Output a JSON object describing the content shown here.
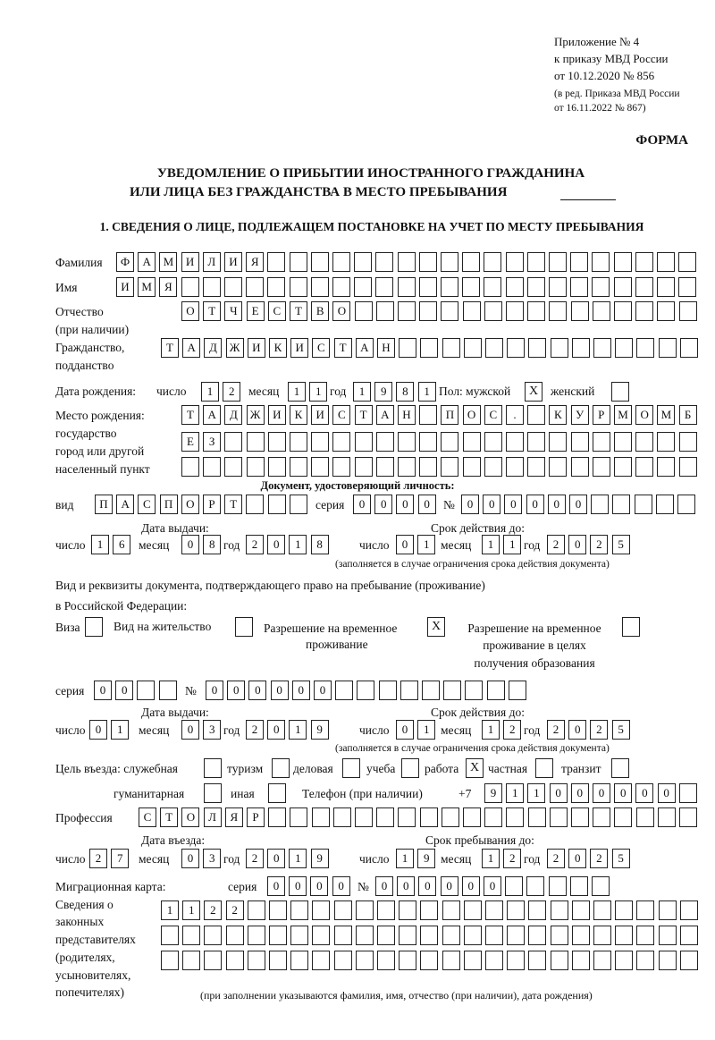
{
  "header": {
    "appendix": "Приложение № 4",
    "order": "к приказу МВД России",
    "order_date": "от 10.12.2020 № 856",
    "revision1": "(в ред. Приказа МВД России",
    "revision2": "от 16.11.2022 № 867)",
    "form": "ФОРМА",
    "title1": "УВЕДОМЛЕНИЕ О ПРИБЫТИИ ИНОСТРАННОГО ГРАЖДАНИНА",
    "title2": "ИЛИ ЛИЦА БЕЗ ГРАЖДАНСТВА В МЕСТО ПРЕБЫВАНИЯ",
    "section1": "1. СВЕДЕНИЯ О ЛИЦЕ, ПОДЛЕЖАЩЕМ ПОСТАНОВКЕ НА УЧЕТ ПО МЕСТУ ПРЕБЫВАНИЯ"
  },
  "labels": {
    "surname": "Фамилия",
    "name": "Имя",
    "patronymic1": "Отчество",
    "patronymic2": "(при наличии)",
    "citizenship1": "Гражданство,",
    "citizenship2": "подданство",
    "birth_date": "Дата рождения:",
    "day": "число",
    "month": "месяц",
    "year": "год",
    "sex": "Пол: мужской",
    "female": "женский",
    "birthplace1": "Место рождения:",
    "birthplace2": "государство",
    "birthplace3": "город или другой",
    "birthplace4": "населенный пункт",
    "id_doc": "Документ, удостоверяющий личность:",
    "kind": "вид",
    "series": "серия",
    "number": "№",
    "issue_date": "Дата выдачи:",
    "valid_until": "Срок действия до:",
    "validity_note": "(заполняется в случае ограничения срока действия документа)",
    "right_doc1": "Вид и реквизиты документа, подтверждающего право на пребывание (проживание)",
    "right_doc2": "в Российской Федерации:",
    "visa": "Виза",
    "residence": "Вид на жительство",
    "temp_permit1": "Разрешение на временное",
    "temp_permit2": "проживание",
    "edu_permit1": "Разрешение на временное",
    "edu_permit2": "проживание в целях",
    "edu_permit3": "получения образования",
    "purpose": "Цель въезда: служебная",
    "tourism": "туризм",
    "business": "деловая",
    "study": "учеба",
    "work": "работа",
    "private": "частная",
    "transit": "транзит",
    "humanitarian": "гуманитарная",
    "other": "иная",
    "phone": "Телефон (при наличии)",
    "phone_prefix": "+7",
    "profession": "Профессия",
    "entry_date": "Дата въезда:",
    "stay_until": "Срок пребывания до:",
    "migration_card": "Миграционная карта:",
    "reps1": "Сведения о",
    "reps2": "законных",
    "reps3": "представителях",
    "reps4": "(родителях,",
    "reps5": "усыновителях,",
    "reps6": "попечителях)",
    "reps_note": "(при заполнении указываются фамилия, имя, отчество (при наличии), дата рождения)"
  },
  "person": {
    "surname": "ФАМИЛИЯ",
    "name": "ИМЯ",
    "patronymic": "ОТЧЕСТВО",
    "citizenship": "ТАДЖИКИСТАН",
    "birth_day": "12",
    "birth_month": "11",
    "birth_year": "1981",
    "male": "X",
    "female": "",
    "birthplace_row1": "ТАДЖИКИСТАН ПОС. КУРМОМБ",
    "birthplace_row2": "ЕЗ",
    "birthplace_row3": ""
  },
  "id_document": {
    "kind": "ПАСПОРТ",
    "series": "0000",
    "number": "000000",
    "issue_day": "16",
    "issue_month": "08",
    "issue_year": "2018",
    "valid_day": "01",
    "valid_month": "11",
    "valid_year": "2025"
  },
  "right_document": {
    "visa": "",
    "residence": "",
    "temp_permit": "X",
    "edu_permit": "",
    "series": "00",
    "number": "000000",
    "issue_day": "01",
    "issue_month": "03",
    "issue_year": "2019",
    "valid_day": "01",
    "valid_month": "12",
    "valid_year": "2025"
  },
  "purpose": {
    "official": "",
    "tourism": "",
    "business": "",
    "study": "",
    "work": "X",
    "private": "",
    "transit": "",
    "humanitarian": "",
    "other": ""
  },
  "phone": "911000000",
  "profession": "СТОЛЯР",
  "entry": {
    "entry_day": "27",
    "entry_month": "03",
    "entry_year": "2019",
    "stay_day": "19",
    "stay_month": "12",
    "stay_year": "2025"
  },
  "migration_card": {
    "series": "0000",
    "number": "000000"
  },
  "representatives": {
    "row1": "1122",
    "row2": "",
    "row3": ""
  }
}
